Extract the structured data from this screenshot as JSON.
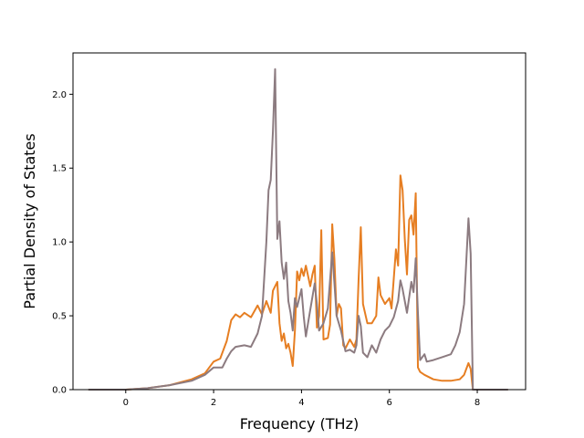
{
  "chart_data": {
    "type": "line",
    "title": "",
    "xlabel": "Frequency (THz)",
    "ylabel": "Partial Density of States",
    "xlim": [
      -1.2,
      9.1
    ],
    "ylim": [
      0.0,
      2.28
    ],
    "x_ticks": [
      0,
      2,
      4,
      6,
      8
    ],
    "x_tick_labels": [
      "0",
      "2",
      "4",
      "6",
      "8"
    ],
    "y_ticks": [
      0.0,
      0.5,
      1.0,
      1.5,
      2.0
    ],
    "y_tick_labels": [
      "0.0",
      "0.5",
      "1.0",
      "1.5",
      "2.0"
    ],
    "grid": false,
    "legend": "none",
    "series": [
      {
        "color": "#e67e22",
        "points": [
          [
            -0.85,
            0.0
          ],
          [
            0.0,
            0.0
          ],
          [
            0.5,
            0.01
          ],
          [
            1.0,
            0.03
          ],
          [
            1.5,
            0.07
          ],
          [
            1.8,
            0.11
          ],
          [
            2.0,
            0.19
          ],
          [
            2.15,
            0.21
          ],
          [
            2.3,
            0.33
          ],
          [
            2.4,
            0.47
          ],
          [
            2.5,
            0.51
          ],
          [
            2.6,
            0.49
          ],
          [
            2.7,
            0.52
          ],
          [
            2.85,
            0.49
          ],
          [
            3.0,
            0.57
          ],
          [
            3.1,
            0.51
          ],
          [
            3.2,
            0.6
          ],
          [
            3.3,
            0.52
          ],
          [
            3.35,
            0.67
          ],
          [
            3.45,
            0.73
          ],
          [
            3.5,
            0.45
          ],
          [
            3.55,
            0.33
          ],
          [
            3.6,
            0.38
          ],
          [
            3.65,
            0.28
          ],
          [
            3.7,
            0.31
          ],
          [
            3.75,
            0.25
          ],
          [
            3.8,
            0.16
          ],
          [
            3.85,
            0.4
          ],
          [
            3.9,
            0.8
          ],
          [
            3.95,
            0.74
          ],
          [
            4.0,
            0.82
          ],
          [
            4.05,
            0.77
          ],
          [
            4.1,
            0.84
          ],
          [
            4.2,
            0.7
          ],
          [
            4.25,
            0.78
          ],
          [
            4.3,
            0.84
          ],
          [
            4.35,
            0.42
          ],
          [
            4.4,
            0.5
          ],
          [
            4.45,
            1.08
          ],
          [
            4.5,
            0.34
          ],
          [
            4.6,
            0.35
          ],
          [
            4.65,
            0.44
          ],
          [
            4.7,
            1.12
          ],
          [
            4.75,
            0.88
          ],
          [
            4.8,
            0.5
          ],
          [
            4.85,
            0.58
          ],
          [
            4.9,
            0.55
          ],
          [
            4.95,
            0.3
          ],
          [
            5.0,
            0.28
          ],
          [
            5.1,
            0.34
          ],
          [
            5.2,
            0.29
          ],
          [
            5.25,
            0.34
          ],
          [
            5.3,
            0.75
          ],
          [
            5.35,
            1.1
          ],
          [
            5.4,
            0.58
          ],
          [
            5.5,
            0.45
          ],
          [
            5.6,
            0.45
          ],
          [
            5.7,
            0.5
          ],
          [
            5.75,
            0.76
          ],
          [
            5.8,
            0.64
          ],
          [
            5.9,
            0.58
          ],
          [
            6.0,
            0.62
          ],
          [
            6.05,
            0.55
          ],
          [
            6.15,
            0.95
          ],
          [
            6.2,
            0.84
          ],
          [
            6.25,
            1.45
          ],
          [
            6.3,
            1.35
          ],
          [
            6.35,
            1.02
          ],
          [
            6.4,
            0.78
          ],
          [
            6.45,
            1.15
          ],
          [
            6.5,
            1.18
          ],
          [
            6.55,
            1.05
          ],
          [
            6.6,
            1.33
          ],
          [
            6.65,
            0.15
          ],
          [
            6.7,
            0.12
          ],
          [
            6.8,
            0.1
          ],
          [
            7.0,
            0.07
          ],
          [
            7.2,
            0.06
          ],
          [
            7.4,
            0.06
          ],
          [
            7.6,
            0.07
          ],
          [
            7.7,
            0.1
          ],
          [
            7.8,
            0.18
          ],
          [
            7.85,
            0.14
          ],
          [
            7.9,
            0.0
          ],
          [
            8.7,
            0.0
          ]
        ]
      },
      {
        "color": "#8c7b80",
        "points": [
          [
            -0.85,
            0.0
          ],
          [
            0.0,
            0.0
          ],
          [
            0.5,
            0.01
          ],
          [
            1.0,
            0.03
          ],
          [
            1.5,
            0.06
          ],
          [
            1.8,
            0.1
          ],
          [
            2.0,
            0.15
          ],
          [
            2.2,
            0.15
          ],
          [
            2.3,
            0.21
          ],
          [
            2.4,
            0.26
          ],
          [
            2.5,
            0.29
          ],
          [
            2.7,
            0.3
          ],
          [
            2.85,
            0.29
          ],
          [
            3.0,
            0.38
          ],
          [
            3.1,
            0.5
          ],
          [
            3.15,
            0.75
          ],
          [
            3.2,
            1.0
          ],
          [
            3.25,
            1.35
          ],
          [
            3.3,
            1.42
          ],
          [
            3.35,
            1.75
          ],
          [
            3.4,
            2.17
          ],
          [
            3.45,
            1.02
          ],
          [
            3.5,
            1.14
          ],
          [
            3.55,
            0.86
          ],
          [
            3.6,
            0.75
          ],
          [
            3.65,
            0.86
          ],
          [
            3.7,
            0.6
          ],
          [
            3.75,
            0.52
          ],
          [
            3.8,
            0.4
          ],
          [
            3.85,
            0.62
          ],
          [
            3.9,
            0.56
          ],
          [
            4.0,
            0.68
          ],
          [
            4.05,
            0.5
          ],
          [
            4.1,
            0.36
          ],
          [
            4.2,
            0.54
          ],
          [
            4.3,
            0.72
          ],
          [
            4.35,
            0.58
          ],
          [
            4.4,
            0.4
          ],
          [
            4.5,
            0.45
          ],
          [
            4.6,
            0.55
          ],
          [
            4.7,
            0.93
          ],
          [
            4.75,
            0.72
          ],
          [
            4.8,
            0.5
          ],
          [
            4.9,
            0.4
          ],
          [
            5.0,
            0.26
          ],
          [
            5.1,
            0.27
          ],
          [
            5.2,
            0.25
          ],
          [
            5.25,
            0.3
          ],
          [
            5.3,
            0.5
          ],
          [
            5.35,
            0.43
          ],
          [
            5.4,
            0.25
          ],
          [
            5.5,
            0.22
          ],
          [
            5.6,
            0.3
          ],
          [
            5.7,
            0.25
          ],
          [
            5.8,
            0.34
          ],
          [
            5.9,
            0.4
          ],
          [
            6.0,
            0.43
          ],
          [
            6.1,
            0.49
          ],
          [
            6.2,
            0.6
          ],
          [
            6.25,
            0.74
          ],
          [
            6.3,
            0.68
          ],
          [
            6.4,
            0.52
          ],
          [
            6.5,
            0.73
          ],
          [
            6.55,
            0.66
          ],
          [
            6.6,
            0.89
          ],
          [
            6.65,
            0.52
          ],
          [
            6.7,
            0.2
          ],
          [
            6.8,
            0.24
          ],
          [
            6.85,
            0.19
          ],
          [
            7.0,
            0.2
          ],
          [
            7.2,
            0.22
          ],
          [
            7.4,
            0.24
          ],
          [
            7.5,
            0.3
          ],
          [
            7.6,
            0.39
          ],
          [
            7.7,
            0.58
          ],
          [
            7.8,
            1.16
          ],
          [
            7.85,
            0.92
          ],
          [
            7.9,
            0.0
          ],
          [
            8.7,
            0.0
          ]
        ]
      }
    ]
  }
}
